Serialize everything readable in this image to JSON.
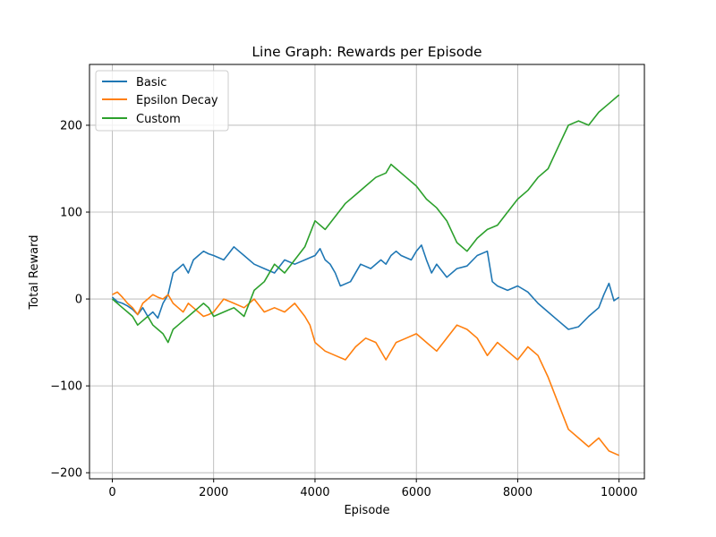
{
  "chart_data": {
    "type": "line",
    "title": "Line Graph: Rewards per Episode",
    "xlabel": "Episode",
    "ylabel": "Total Reward",
    "xlim": [
      -450,
      10500
    ],
    "ylim": [
      -207,
      270
    ],
    "xticks": [
      0,
      2000,
      4000,
      6000,
      8000,
      10000
    ],
    "xtick_labels": [
      "0",
      "2000",
      "4000",
      "6000",
      "8000",
      "10000"
    ],
    "yticks": [
      -200,
      -100,
      0,
      100,
      200
    ],
    "ytick_labels": [
      "−200",
      "−100",
      "0",
      "100",
      "200"
    ],
    "grid": true,
    "legend_position": "top-left",
    "series": [
      {
        "name": "Basic",
        "color": "#1f77b4",
        "x": [
          0,
          100,
          200,
          300,
          400,
          500,
          600,
          700,
          800,
          900,
          1000,
          1100,
          1200,
          1300,
          1400,
          1500,
          1600,
          1700,
          1800,
          1900,
          2000,
          2200,
          2400,
          2500,
          2600,
          2800,
          3000,
          3200,
          3400,
          3600,
          3800,
          4000,
          4100,
          4200,
          4300,
          4400,
          4500,
          4700,
          4900,
          5100,
          5300,
          5400,
          5500,
          5600,
          5700,
          5900,
          6000,
          6100,
          6200,
          6300,
          6400,
          6600,
          6800,
          7000,
          7200,
          7400,
          7500,
          7600,
          7800,
          8000,
          8200,
          8400,
          8600,
          8800,
          9000,
          9200,
          9400,
          9600,
          9700,
          9800,
          9900,
          10000
        ],
        "y": [
          2,
          -3,
          -5,
          -8,
          -12,
          -18,
          -10,
          -20,
          -15,
          -22,
          -5,
          5,
          30,
          35,
          40,
          30,
          45,
          50,
          55,
          52,
          50,
          45,
          60,
          55,
          50,
          40,
          35,
          30,
          45,
          40,
          45,
          50,
          58,
          45,
          40,
          30,
          15,
          20,
          40,
          35,
          45,
          40,
          50,
          55,
          50,
          45,
          55,
          62,
          45,
          30,
          40,
          25,
          35,
          38,
          50,
          55,
          20,
          15,
          10,
          15,
          8,
          -5,
          -15,
          -25,
          -35,
          -32,
          -20,
          -10,
          5,
          18,
          -2,
          2
        ]
      },
      {
        "name": "Epsilon Decay",
        "color": "#ff7f0e",
        "x": [
          0,
          100,
          200,
          300,
          400,
          500,
          600,
          700,
          800,
          900,
          1000,
          1100,
          1200,
          1300,
          1400,
          1500,
          1600,
          1700,
          1800,
          1900,
          2000,
          2200,
          2400,
          2600,
          2800,
          3000,
          3200,
          3400,
          3600,
          3800,
          3900,
          4000,
          4200,
          4400,
          4600,
          4800,
          5000,
          5200,
          5400,
          5600,
          5800,
          6000,
          6200,
          6400,
          6600,
          6800,
          7000,
          7200,
          7400,
          7600,
          7800,
          8000,
          8200,
          8400,
          8600,
          8800,
          9000,
          9200,
          9400,
          9600,
          9800,
          10000
        ],
        "y": [
          5,
          8,
          2,
          -5,
          -10,
          -18,
          -5,
          0,
          5,
          2,
          0,
          5,
          -5,
          -10,
          -15,
          -5,
          -10,
          -15,
          -20,
          -18,
          -15,
          0,
          -5,
          -10,
          0,
          -15,
          -10,
          -15,
          -5,
          -20,
          -30,
          -50,
          -60,
          -65,
          -70,
          -55,
          -45,
          -50,
          -70,
          -50,
          -45,
          -40,
          -50,
          -60,
          -45,
          -30,
          -35,
          -45,
          -65,
          -50,
          -60,
          -70,
          -55,
          -65,
          -90,
          -120,
          -150,
          -160,
          -170,
          -160,
          -175,
          -180
        ]
      },
      {
        "name": "Custom",
        "color": "#2ca02c",
        "x": [
          0,
          100,
          200,
          300,
          400,
          500,
          600,
          700,
          800,
          900,
          1000,
          1100,
          1200,
          1300,
          1400,
          1500,
          1600,
          1700,
          1800,
          1900,
          2000,
          2200,
          2400,
          2600,
          2800,
          3000,
          3200,
          3400,
          3600,
          3800,
          4000,
          4200,
          4400,
          4600,
          4800,
          5000,
          5200,
          5400,
          5500,
          5600,
          5800,
          6000,
          6200,
          6400,
          6600,
          6800,
          7000,
          7200,
          7400,
          7600,
          7800,
          8000,
          8200,
          8400,
          8600,
          8800,
          9000,
          9200,
          9400,
          9600,
          9800,
          10000
        ],
        "y": [
          0,
          -5,
          -10,
          -15,
          -20,
          -30,
          -25,
          -20,
          -30,
          -35,
          -40,
          -50,
          -35,
          -30,
          -25,
          -20,
          -15,
          -10,
          -5,
          -10,
          -20,
          -15,
          -10,
          -20,
          10,
          20,
          40,
          30,
          45,
          60,
          90,
          80,
          95,
          110,
          120,
          130,
          140,
          145,
          155,
          150,
          140,
          130,
          115,
          105,
          90,
          65,
          55,
          70,
          80,
          85,
          100,
          115,
          125,
          140,
          150,
          175,
          200,
          205,
          200,
          215,
          225,
          235
        ]
      }
    ]
  }
}
